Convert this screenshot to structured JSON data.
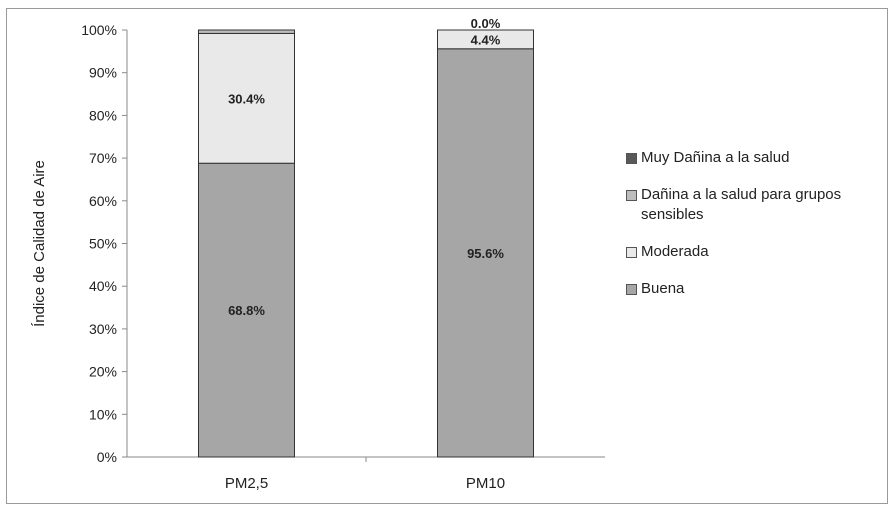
{
  "chart_data": {
    "type": "bar",
    "stacked": true,
    "categories": [
      "PM2,5",
      "PM10"
    ],
    "series": [
      {
        "name": "Buena",
        "values": [
          68.8,
          95.6
        ],
        "color": "#a6a6a6"
      },
      {
        "name": "Moderada",
        "values": [
          30.4,
          4.4
        ],
        "color": "#e9e9e9"
      },
      {
        "name": "Dañina a la salud para grupos sensibles",
        "values": [
          0.8,
          0.0
        ],
        "color": "#bdbdbd"
      },
      {
        "name": "Muy Dañina a la salud",
        "values": [
          0.0,
          0.0
        ],
        "color": "#595959"
      }
    ],
    "data_labels": [
      {
        "category": "PM2,5",
        "series": "Buena",
        "text": "68.8%"
      },
      {
        "category": "PM2,5",
        "series": "Moderada",
        "text": "30.4%"
      },
      {
        "category": "PM10",
        "series": "Buena",
        "text": "95.6%"
      },
      {
        "category": "PM10",
        "series": "Moderada",
        "text": "4.4%"
      },
      {
        "category": "PM10",
        "series": "Dañina a la salud para grupos sensibles",
        "text": "0.0%"
      }
    ],
    "ylabel": "Índice de Calidad de Aire",
    "xlabel": "",
    "ylim": [
      0,
      100
    ],
    "yticks": [
      "0%",
      "10%",
      "20%",
      "30%",
      "40%",
      "50%",
      "60%",
      "70%",
      "80%",
      "90%",
      "100%"
    ],
    "legend_position": "right",
    "legend_order": [
      "Muy Dañina a la salud",
      "Dañina a la salud para grupos sensibles",
      "Moderada",
      "Buena"
    ]
  }
}
